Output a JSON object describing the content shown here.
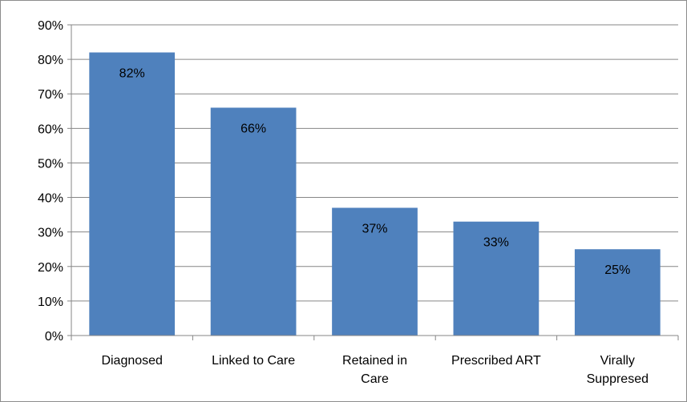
{
  "chart_data": {
    "type": "bar",
    "title": "",
    "xlabel": "",
    "ylabel": "",
    "categories": [
      [
        "Diagnosed"
      ],
      [
        "Linked to Care"
      ],
      [
        "Retained in",
        "Care"
      ],
      [
        "Prescribed ART"
      ],
      [
        "Virally",
        "Suppresed"
      ]
    ],
    "values": [
      82,
      66,
      37,
      33,
      25
    ],
    "data_labels": [
      "82%",
      "66%",
      "37%",
      "33%",
      "25%"
    ],
    "y_ticks": [
      0,
      10,
      20,
      30,
      40,
      50,
      60,
      70,
      80,
      90
    ],
    "y_tick_labels": [
      "0%",
      "10%",
      "20%",
      "30%",
      "40%",
      "50%",
      "60%",
      "70%",
      "80%",
      "90%"
    ],
    "ylim": [
      0,
      90
    ],
    "grid": true,
    "legend": "none",
    "colors": {
      "bar": "#4f81bd",
      "grid": "#868686",
      "axis": "#868686"
    }
  }
}
